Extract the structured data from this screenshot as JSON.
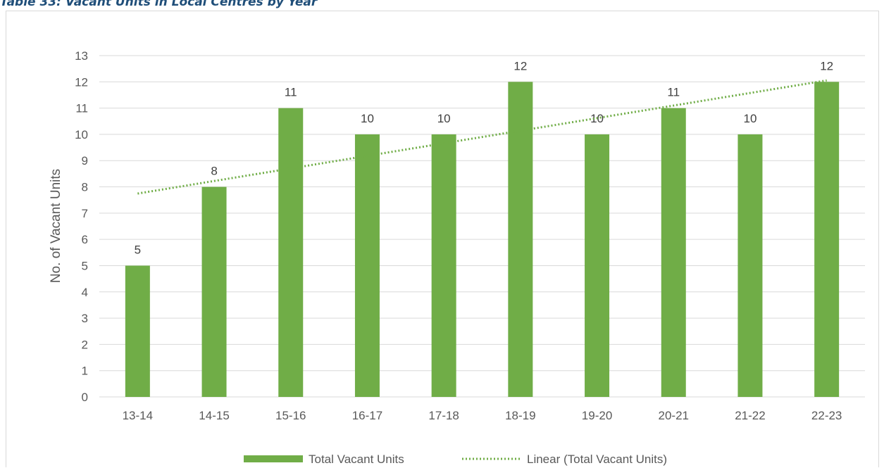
{
  "caption": "Table 33: Vacant Units in Local Centres by Year",
  "chart_data": {
    "type": "bar",
    "categories": [
      "13-14",
      "14-15",
      "15-16",
      "16-17",
      "17-18",
      "18-19",
      "19-20",
      "20-21",
      "21-22",
      "22-23"
    ],
    "series": [
      {
        "name": "Total Vacant Units",
        "values": [
          5,
          8,
          11,
          10,
          10,
          12,
          10,
          11,
          10,
          12
        ],
        "color": "#70ad47"
      }
    ],
    "trendline": {
      "name": "Linear (Total Vacant Units)",
      "type": "linear",
      "style": "dotted",
      "color": "#70ad47"
    },
    "data_labels": true,
    "ylabel": "No. of Vacant Units",
    "xlabel": "",
    "ylim": [
      0,
      13
    ],
    "yticks": [
      0,
      1,
      2,
      3,
      4,
      5,
      6,
      7,
      8,
      9,
      10,
      11,
      12,
      13
    ],
    "grid": true,
    "legend_position": "bottom",
    "gridline_color": "#d9d9d9"
  }
}
